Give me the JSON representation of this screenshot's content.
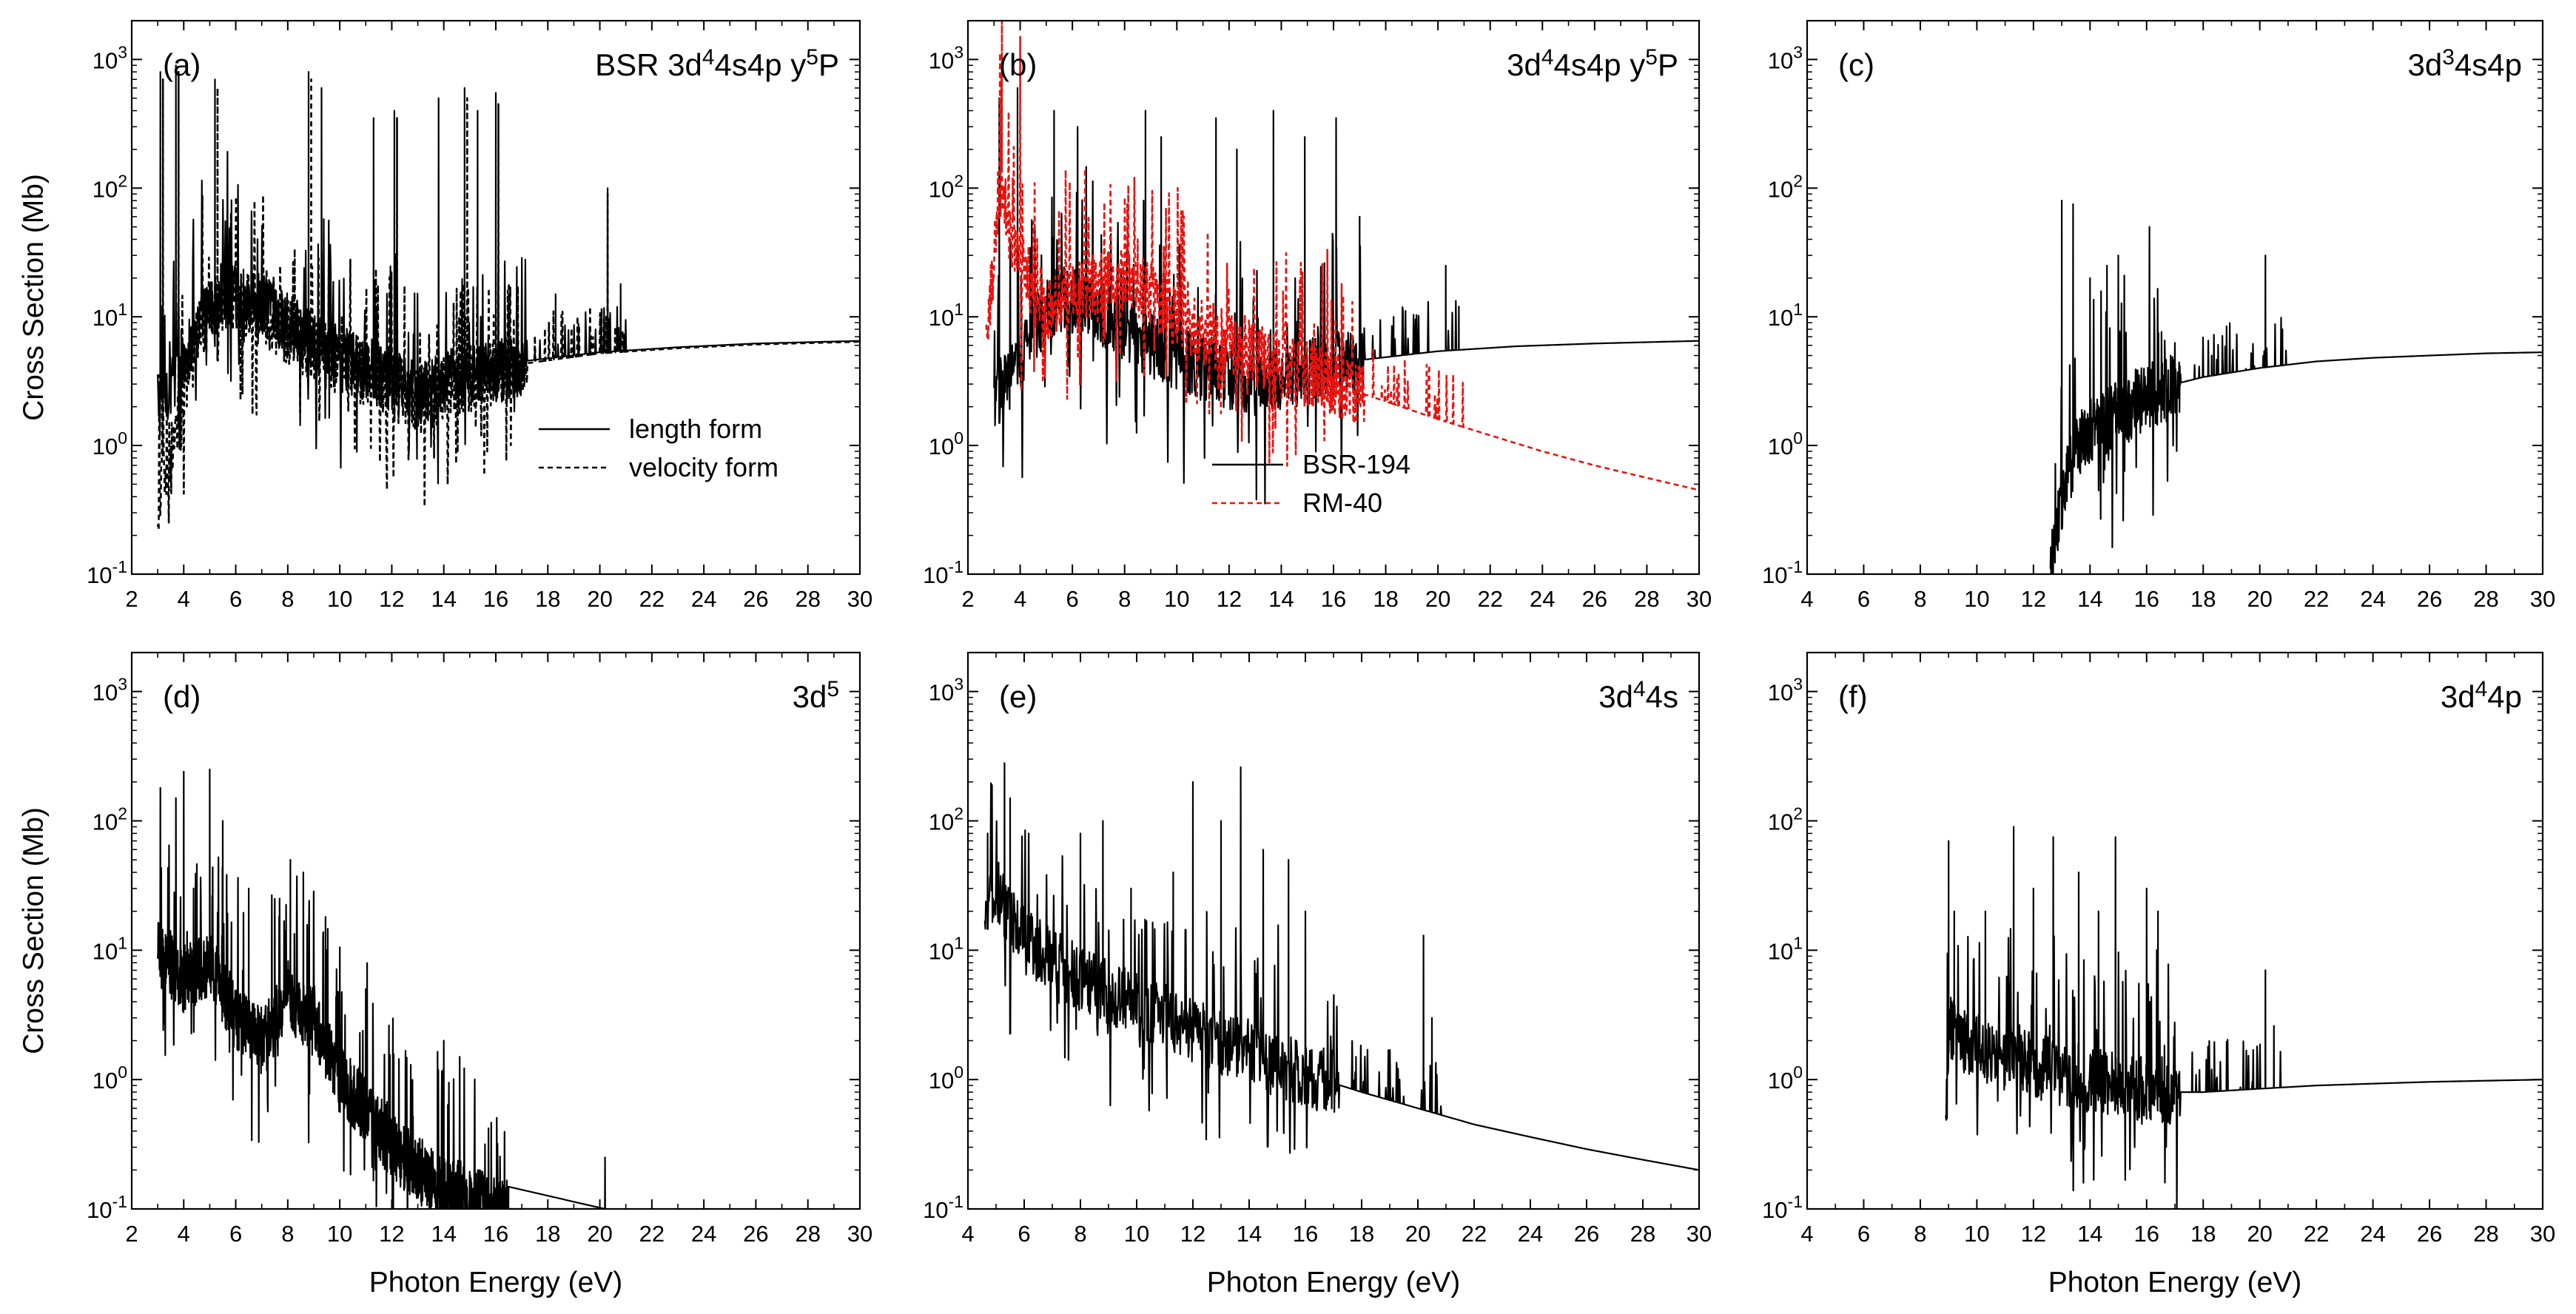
{
  "figure": {
    "xlabel": "Photon Energy (eV)",
    "ylabel": "Cross Section (Mb)"
  },
  "colors": {
    "bsr": "#000000",
    "rm": "#e8130f",
    "frame": "#000000"
  },
  "chart_data": [
    {
      "id": "a",
      "type": "line",
      "panel_label": "(a)",
      "title_parts": [
        "BSR  3d",
        "4",
        "4s4p  y",
        "5",
        "P"
      ],
      "xlim": [
        2,
        30
      ],
      "ylim": [
        0.1,
        2000
      ],
      "xticks": [
        2,
        4,
        6,
        8,
        10,
        12,
        14,
        16,
        18,
        20,
        22,
        24,
        26,
        28,
        30
      ],
      "ytick_base": [
        "10",
        "10",
        "10",
        "10",
        "10"
      ],
      "ytick_exp": [
        "-1",
        "0",
        "1",
        "2",
        "3"
      ],
      "legend": [
        {
          "name": "length form",
          "style": "solid"
        },
        {
          "name": "velocity form",
          "style": "dashed"
        }
      ],
      "series": [
        {
          "name": "length form",
          "style": "solid",
          "color": "#000000",
          "onset": 3.0,
          "final_value": 6.5,
          "x": [
            3.0,
            4.5,
            5.5,
            7.0,
            9.0,
            11.0,
            13.0,
            15.0,
            17.0,
            20.0,
            23.0,
            26.0,
            30.0
          ],
          "y": [
            2.0,
            8.0,
            15.0,
            12.0,
            6.0,
            4.0,
            2.5,
            3.5,
            4.5,
            5.3,
            5.8,
            6.2,
            6.5
          ],
          "peaks": [
            [
              3.1,
              800
            ],
            [
              3.7,
              900
            ],
            [
              5.2,
              700
            ],
            [
              8.8,
              800
            ],
            [
              9.3,
              600
            ],
            [
              11.3,
              350
            ],
            [
              12.1,
              400
            ],
            [
              13.8,
              500
            ],
            [
              14.8,
              600
            ],
            [
              15.3,
              400
            ],
            [
              16.0,
              550
            ],
            [
              18.3,
              15
            ],
            [
              20.3,
              100
            ],
            [
              20.8,
              18
            ]
          ]
        },
        {
          "name": "velocity form",
          "style": "dashed",
          "color": "#000000",
          "onset": 3.0,
          "final_value": 6.4,
          "x": [
            3.0,
            4.5,
            5.5,
            7.0,
            9.0,
            11.0,
            13.0,
            15.0,
            17.0,
            20.0,
            23.0,
            26.0,
            30.0
          ],
          "y": [
            0.35,
            7.0,
            14.0,
            11.0,
            5.5,
            3.7,
            2.2,
            3.3,
            4.3,
            5.2,
            5.7,
            6.1,
            6.4
          ],
          "peaks": [
            [
              3.2,
              700
            ],
            [
              3.8,
              800
            ],
            [
              5.3,
              600
            ],
            [
              8.9,
              700
            ],
            [
              12.2,
              350
            ],
            [
              14.9,
              500
            ],
            [
              16.1,
              450
            ],
            [
              20.3,
              90
            ]
          ]
        }
      ]
    },
    {
      "id": "b",
      "type": "line",
      "panel_label": "(b)",
      "title_parts": [
        "3d",
        "4",
        "4s4p  y",
        "5",
        "P"
      ],
      "xlim": [
        2,
        30
      ],
      "ylim": [
        0.1,
        2000
      ],
      "xticks": [
        2,
        4,
        6,
        8,
        10,
        12,
        14,
        16,
        18,
        20,
        22,
        24,
        26,
        28,
        30
      ],
      "ytick_base": [
        "10",
        "10",
        "10",
        "10",
        "10"
      ],
      "ytick_exp": [
        "-1",
        "0",
        "1",
        "2",
        "3"
      ],
      "legend": [
        {
          "name": "BSR-194",
          "style": "solid"
        },
        {
          "name": "RM-40",
          "style": "dashed-red"
        }
      ],
      "series": [
        {
          "name": "BSR-194",
          "style": "solid",
          "color": "#000000",
          "onset": 3.0,
          "final_value": 6.5,
          "x": [
            3.0,
            4.5,
            5.5,
            7.0,
            9.0,
            11.0,
            13.0,
            15.0,
            17.0,
            20.0,
            23.0,
            26.0,
            30.0
          ],
          "y": [
            2.0,
            8.0,
            14.0,
            11.0,
            6.0,
            4.0,
            3.0,
            3.8,
            4.6,
            5.4,
            5.9,
            6.2,
            6.5
          ],
          "peaks": [
            [
              3.2,
              500
            ],
            [
              3.9,
              600
            ],
            [
              5.3,
              400
            ],
            [
              6.2,
              300
            ],
            [
              8.8,
              400
            ],
            [
              9.4,
              250
            ],
            [
              11.5,
              350
            ],
            [
              12.3,
              200
            ],
            [
              13.7,
              400
            ],
            [
              14.9,
              250
            ],
            [
              16.1,
              350
            ],
            [
              17.0,
              60
            ],
            [
              18.3,
              10
            ],
            [
              20.3,
              25
            ],
            [
              20.8,
              12
            ]
          ]
        },
        {
          "name": "RM-40",
          "style": "dashed",
          "color": "#e8130f",
          "onset": 2.7,
          "final_value": 0.45,
          "x": [
            2.7,
            3.2,
            4.0,
            5.0,
            6.0,
            7.0,
            8.0,
            9.0,
            10.0,
            12.0,
            14.0,
            16.0,
            18.0,
            20.0,
            22.0,
            24.0,
            26.0,
            28.0,
            30.0
          ],
          "y": [
            5.0,
            100,
            25,
            12,
            15,
            18,
            20,
            15,
            10,
            6,
            4.2,
            3.0,
            2.2,
            1.6,
            1.2,
            0.9,
            0.7,
            0.56,
            0.45
          ],
          "peaks": [
            [
              3.3,
              2000
            ],
            [
              4.0,
              1500
            ],
            [
              8.5,
              40
            ],
            [
              9.5,
              35
            ]
          ]
        }
      ]
    },
    {
      "id": "c",
      "type": "line",
      "panel_label": "(c)",
      "title_parts": [
        "3d",
        "3",
        "4s4p",
        "",
        ""
      ],
      "xlim": [
        4,
        30
      ],
      "ylim": [
        0.1,
        2000
      ],
      "xticks": [
        4,
        6,
        8,
        10,
        12,
        14,
        16,
        18,
        20,
        22,
        24,
        26,
        28,
        30
      ],
      "ytick_base": [
        "10",
        "10",
        "10",
        "10",
        "10"
      ],
      "ytick_exp": [
        "-1",
        "0",
        "1",
        "2",
        "3"
      ],
      "legend": [],
      "series": [
        {
          "name": "3d3 4s4p",
          "style": "solid",
          "color": "#000000",
          "onset": 12.6,
          "final_value": 5.3,
          "x": [
            12.6,
            13.0,
            13.5,
            14.0,
            15.0,
            16.0,
            17.0,
            18.0,
            20.0,
            22.0,
            24.0,
            26.0,
            28.0,
            30.0
          ],
          "y": [
            0.1,
            0.4,
            0.9,
            1.3,
            1.8,
            2.4,
            3.0,
            3.4,
            4.0,
            4.5,
            4.8,
            5.0,
            5.2,
            5.3
          ],
          "peaks": [
            [
              13.0,
              80
            ],
            [
              13.4,
              75
            ],
            [
              14.0,
              20
            ],
            [
              14.6,
              25
            ],
            [
              15.0,
              30
            ],
            [
              16.1,
              50
            ],
            [
              18.3,
              5
            ],
            [
              20.2,
              30
            ],
            [
              20.8,
              8
            ]
          ]
        }
      ]
    },
    {
      "id": "d",
      "type": "line",
      "panel_label": "(d)",
      "title_parts": [
        "3d",
        "5",
        "",
        "",
        ""
      ],
      "xlim": [
        2,
        30
      ],
      "ylim": [
        0.1,
        2000
      ],
      "xticks": [
        2,
        4,
        6,
        8,
        10,
        12,
        14,
        16,
        18,
        20,
        22,
        24,
        26,
        28,
        30
      ],
      "ytick_base": [
        "10",
        "10",
        "10",
        "10",
        "10"
      ],
      "ytick_exp": [
        "-1",
        "0",
        "1",
        "2",
        "3"
      ],
      "legend": [],
      "series": [
        {
          "name": "3d5",
          "style": "solid",
          "color": "#000000",
          "onset": 3.0,
          "final_value": 0.1,
          "end_x": 16.5,
          "x": [
            3.0,
            4.0,
            5.0,
            6.0,
            7.0,
            8.0,
            9.0,
            10.0,
            11.0,
            12.0,
            13.0,
            14.0,
            15.0,
            16.0,
            16.5
          ],
          "y": [
            10,
            6,
            8,
            3,
            2,
            4,
            3,
            1.0,
            0.6,
            0.3,
            0.2,
            0.15,
            0.12,
            0.1,
            0.1
          ],
          "peaks": [
            [
              3.1,
              180
            ],
            [
              3.7,
              150
            ],
            [
              4.0,
              240
            ],
            [
              5.0,
              250
            ],
            [
              5.5,
              100
            ],
            [
              6.5,
              30
            ],
            [
              7.5,
              25
            ],
            [
              8.1,
              50
            ],
            [
              8.6,
              40
            ],
            [
              9.5,
              10
            ],
            [
              11.0,
              5
            ],
            [
              14.0,
              2
            ],
            [
              20.2,
              0.25
            ]
          ]
        }
      ]
    },
    {
      "id": "e",
      "type": "line",
      "panel_label": "(e)",
      "title_parts": [
        "3d",
        "4",
        "4s",
        "",
        ""
      ],
      "xlim": [
        4,
        30
      ],
      "ylim": [
        0.1,
        2000
      ],
      "xticks": [
        4,
        6,
        8,
        10,
        12,
        14,
        16,
        18,
        20,
        22,
        24,
        26,
        28,
        30
      ],
      "ytick_base": [
        "10",
        "10",
        "10",
        "10",
        "10"
      ],
      "ytick_exp": [
        "-1",
        "0",
        "1",
        "2",
        "3"
      ],
      "legend": [],
      "series": [
        {
          "name": "3d4 4s",
          "style": "solid",
          "color": "#000000",
          "onset": 4.6,
          "final_value": 0.2,
          "x": [
            4.6,
            5.0,
            6.0,
            7.0,
            8.0,
            10.0,
            12.0,
            14.0,
            16.0,
            18.0,
            20.0,
            22.0,
            24.0,
            26.0,
            28.0,
            30.0
          ],
          "y": [
            25,
            30,
            12,
            8,
            6,
            3.8,
            2.4,
            1.6,
            1.1,
            0.8,
            0.6,
            0.45,
            0.36,
            0.29,
            0.24,
            0.2
          ],
          "peaks": [
            [
              4.7,
              80
            ],
            [
              5.3,
              280
            ],
            [
              5.5,
              150
            ],
            [
              8.0,
              80
            ],
            [
              8.8,
              100
            ],
            [
              9.8,
              30
            ],
            [
              11.3,
              40
            ],
            [
              12.0,
              200
            ],
            [
              13.0,
              100
            ],
            [
              13.7,
              260
            ],
            [
              14.5,
              60
            ],
            [
              15.4,
              50
            ],
            [
              16.0,
              20
            ],
            [
              17.8,
              1.5
            ],
            [
              20.2,
              13
            ],
            [
              20.5,
              3
            ]
          ]
        }
      ]
    },
    {
      "id": "f",
      "type": "line",
      "panel_label": "(f)",
      "title_parts": [
        "3d",
        "4",
        "4p",
        "",
        ""
      ],
      "xlim": [
        4,
        30
      ],
      "ylim": [
        0.1,
        2000
      ],
      "xticks": [
        4,
        6,
        8,
        10,
        12,
        14,
        16,
        18,
        20,
        22,
        24,
        26,
        28,
        30
      ],
      "ytick_base": [
        "10",
        "10",
        "10",
        "10",
        "10"
      ],
      "ytick_exp": [
        "-1",
        "0",
        "1",
        "2",
        "3"
      ],
      "legend": [],
      "series": [
        {
          "name": "3d4 4p",
          "style": "solid",
          "color": "#000000",
          "onset": 8.9,
          "final_value": 1.0,
          "x": [
            8.9,
            9.0,
            9.5,
            10.5,
            12.0,
            14.0,
            16.0,
            17.0,
            18.0,
            20.0,
            22.0,
            24.0,
            26.0,
            28.0,
            30.0
          ],
          "y": [
            0.3,
            2.5,
            2.0,
            1.6,
            1.3,
            1.0,
            0.85,
            0.8,
            0.8,
            0.85,
            0.9,
            0.93,
            0.96,
            0.98,
            1.0
          ],
          "peaks": [
            [
              9.0,
              70
            ],
            [
              9.2,
              20
            ],
            [
              10.3,
              20
            ],
            [
              11.3,
              90
            ],
            [
              12.0,
              30
            ],
            [
              12.7,
              75
            ],
            [
              13.6,
              40
            ],
            [
              14.3,
              20
            ],
            [
              14.9,
              75
            ],
            [
              16.0,
              30
            ],
            [
              16.4,
              20
            ],
            [
              18.3,
              1.2
            ],
            [
              20.2,
              7
            ],
            [
              20.5,
              2.6
            ]
          ]
        }
      ]
    }
  ]
}
